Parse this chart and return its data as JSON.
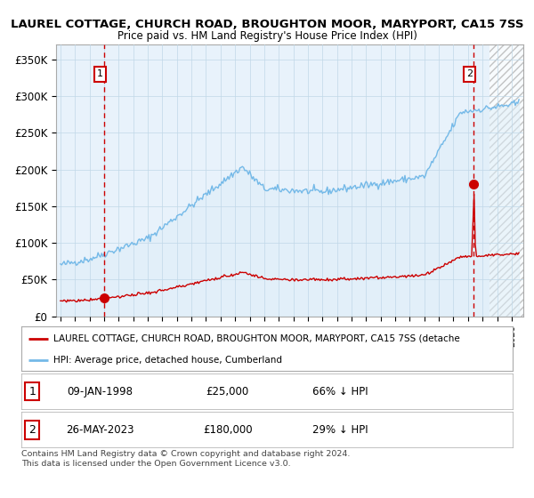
{
  "title": "LAUREL COTTAGE, CHURCH ROAD, BROUGHTON MOOR, MARYPORT, CA15 7SS",
  "subtitle": "Price paid vs. HM Land Registry's House Price Index (HPI)",
  "ylabel_ticks": [
    "£0",
    "£50K",
    "£100K",
    "£150K",
    "£200K",
    "£250K",
    "£300K",
    "£350K"
  ],
  "ytick_values": [
    0,
    50000,
    100000,
    150000,
    200000,
    250000,
    300000,
    350000
  ],
  "ylim": [
    0,
    370000
  ],
  "xlim_start": 1994.7,
  "xlim_end": 2026.8,
  "sale1": {
    "date_num": 1998.03,
    "price": 25000,
    "label": "1"
  },
  "sale2": {
    "date_num": 2023.4,
    "price": 180000,
    "label": "2"
  },
  "hpi_color": "#74b9e8",
  "hpi_fill_color": "#ddeef8",
  "price_color": "#cc0000",
  "dashed_color": "#cc0000",
  "chart_bg": "#e8f2fb",
  "legend_label1": "LAUREL COTTAGE, CHURCH ROAD, BROUGHTON MOOR, MARYPORT, CA15 7SS (detache",
  "legend_label2": "HPI: Average price, detached house, Cumberland",
  "table_rows": [
    [
      "1",
      "09-JAN-1998",
      "£25,000",
      "66% ↓ HPI"
    ],
    [
      "2",
      "26-MAY-2023",
      "£180,000",
      "29% ↓ HPI"
    ]
  ],
  "footnote": "Contains HM Land Registry data © Crown copyright and database right 2024.\nThis data is licensed under the Open Government Licence v3.0.",
  "background_color": "#ffffff",
  "grid_color": "#c0d8e8",
  "hatch_start": 2024.5
}
